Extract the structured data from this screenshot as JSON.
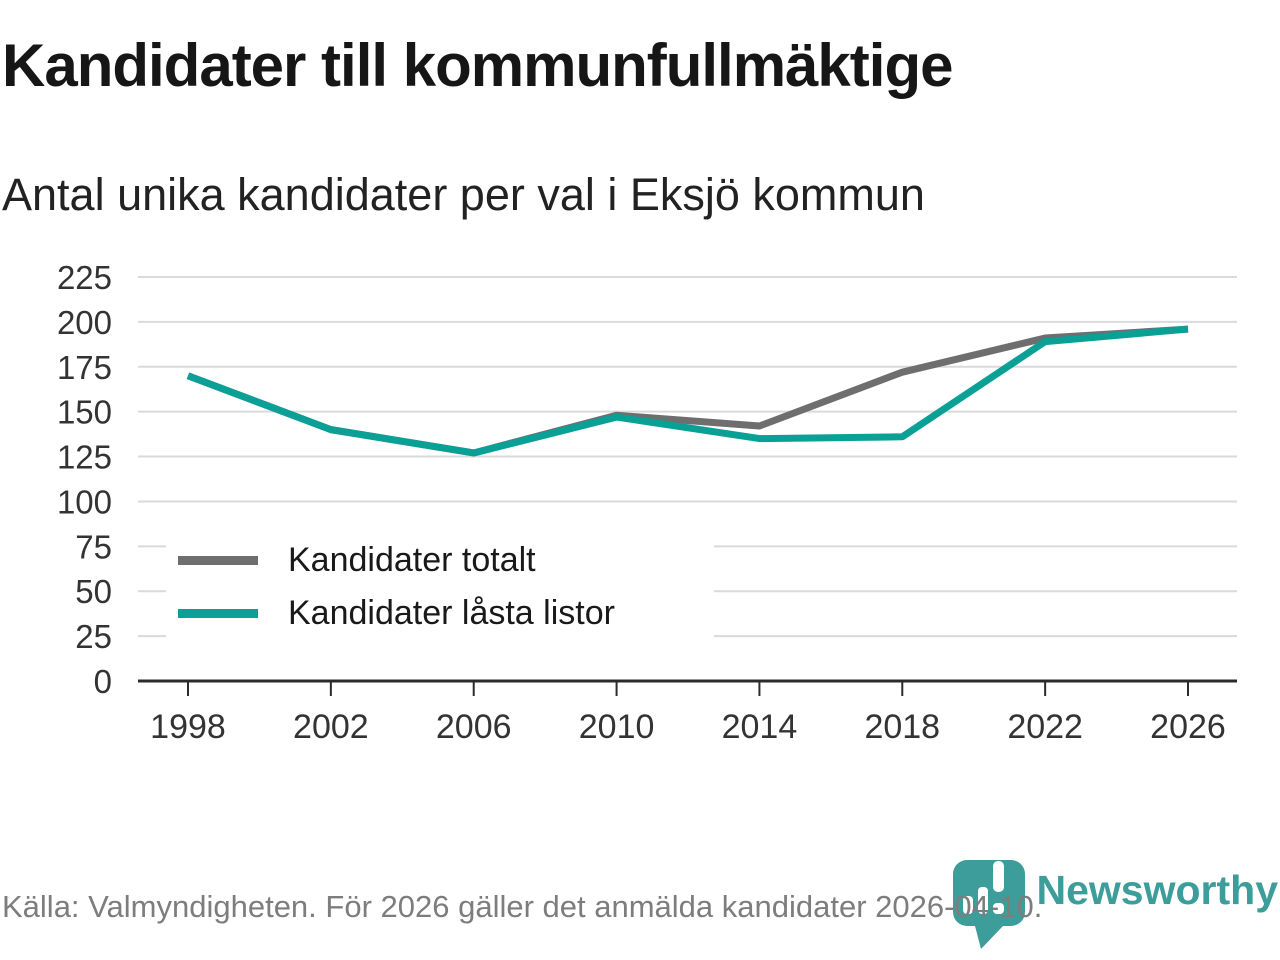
{
  "title": "Kandidater till kommunfullmäktige",
  "subtitle": "Antal unika kandidater per val i Eksjö kommun",
  "source": "Källa: Valmyndigheten. För 2026 gäller det anmälda kandidater 2026-04-10.",
  "branding": {
    "name": "Newsworthy",
    "logo_icon": "bar-chart-pin-icon",
    "color": "#3d9d9a"
  },
  "chart_data": {
    "type": "line",
    "x": [
      1998,
      2002,
      2006,
      2010,
      2014,
      2018,
      2022,
      2026
    ],
    "series": [
      {
        "name": "Kandidater totalt",
        "color": "#6e6e6e",
        "values": [
          170,
          140,
          127,
          148,
          142,
          172,
          191,
          196
        ]
      },
      {
        "name": "Kandidater låsta listor",
        "color": "#0aa096",
        "values": [
          170,
          140,
          127,
          147,
          135,
          136,
          189,
          196
        ]
      }
    ],
    "ylim": [
      0,
      225
    ],
    "ytick_step": 25,
    "grid": "horizontal",
    "legend_position": "inside-left",
    "axis_color": "#2b2b2b",
    "grid_color": "#dadada",
    "tick_label_color": "#333333"
  }
}
